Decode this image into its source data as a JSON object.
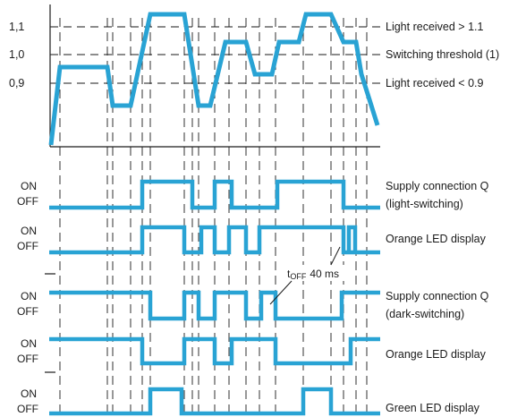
{
  "colors": {
    "signal": "#29a3d4",
    "line": "#1a1a1a"
  },
  "levels": [
    "1,1",
    "1,0",
    "0,9"
  ],
  "threshold_labels": [
    "Light received > 1.1",
    "Switching threshold (1)",
    "Light received < 0.9"
  ],
  "state_on": "ON",
  "state_off": "OFF",
  "rows": [
    {
      "label_lines": [
        "Supply connection Q",
        "(light-switching)"
      ]
    },
    {
      "label_lines": [
        "Orange LED display"
      ]
    },
    {
      "label_lines": [
        "Supply connection Q",
        "(dark-switching)"
      ]
    },
    {
      "label_lines": [
        "Orange LED display"
      ]
    },
    {
      "label_lines": [
        "Green LED display"
      ]
    }
  ],
  "toff": {
    "t": "t",
    "sub": "OFF",
    "value": "40 ms"
  }
}
